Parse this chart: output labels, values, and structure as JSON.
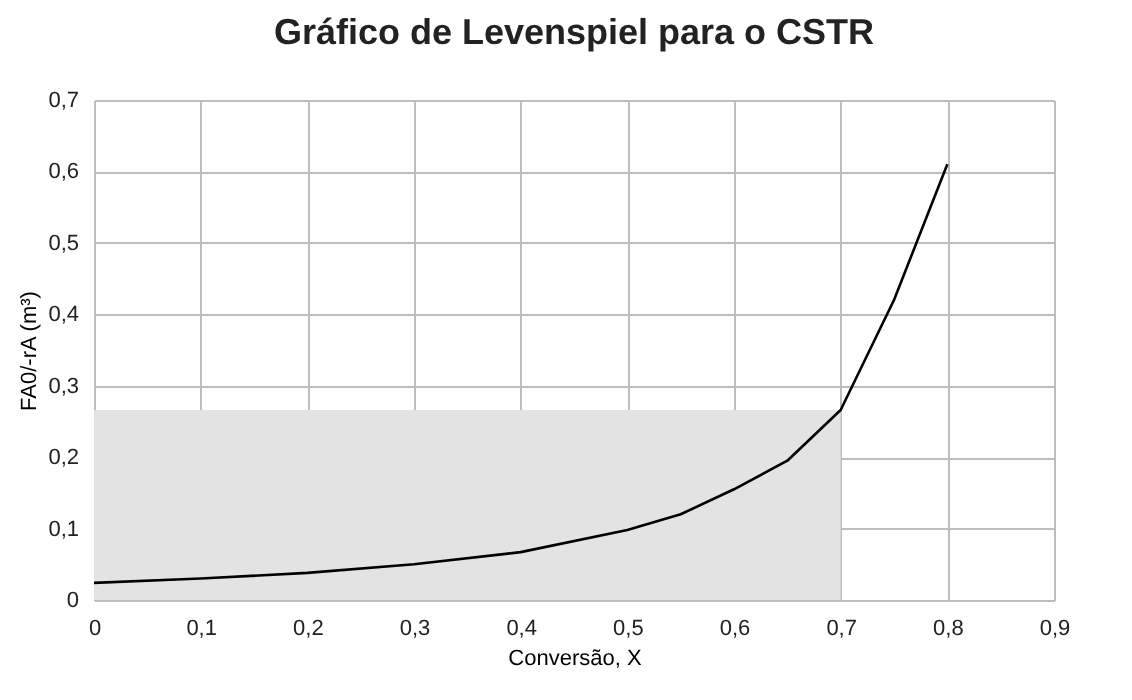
{
  "chart_data": {
    "type": "line",
    "title": "Gráfico de Levenspiel para o CSTR",
    "xlabel": "Conversão, X",
    "ylabel": "FA0/-rA (m³)",
    "series": [
      {
        "type": "area",
        "color": "#e3e3e3",
        "x": [
          0,
          0.7
        ],
        "values": [
          0.266,
          0.266
        ]
      },
      {
        "color": "#000000",
        "x": [
          0,
          0.1,
          0.2,
          0.3,
          0.4,
          0.5,
          0.55,
          0.6,
          0.65,
          0.7,
          0.75,
          0.8
        ],
        "values": [
          0.024,
          0.03,
          0.038,
          0.05,
          0.067,
          0.098,
          0.12,
          0.155,
          0.195,
          0.266,
          0.42,
          0.61
        ]
      }
    ],
    "xlim": [
      0,
      0.9
    ],
    "ylim": [
      0,
      0.7
    ],
    "xticks": [
      0,
      {
        "value": 0.1,
        "label": "0,1"
      },
      {
        "value": 0.2,
        "label": "0,2"
      },
      {
        "value": 0.3,
        "label": "0,3"
      },
      {
        "value": 0.4,
        "label": "0,4"
      },
      {
        "value": 0.5,
        "label": "0,5"
      },
      {
        "value": 0.6,
        "label": "0,6"
      },
      {
        "value": 0.7,
        "label": "0,7"
      },
      {
        "value": 0.8,
        "label": "0,8"
      },
      {
        "value": 0.9,
        "label": "0,9"
      }
    ],
    "yticks": [
      0,
      {
        "value": 0.1,
        "label": "0,1"
      },
      {
        "value": 0.2,
        "label": "0,2"
      },
      {
        "value": 0.3,
        "label": "0,3"
      },
      {
        "value": 0.4,
        "label": "0,4"
      },
      {
        "value": 0.5,
        "label": "0,5"
      },
      {
        "value": 0.6,
        "label": "0,6"
      },
      {
        "value": 0.7,
        "label": "0,7"
      }
    ],
    "grid": true,
    "line_style": "solid",
    "marker": "none"
  }
}
